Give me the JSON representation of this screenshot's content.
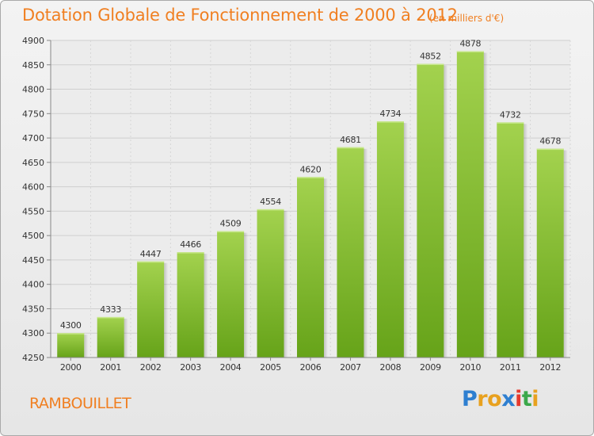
{
  "chart_data": {
    "type": "bar",
    "title": "Dotation Globale de Fonctionnement de 2000 à 2012",
    "unit_note": "(en milliers d'€)",
    "xlabel": "",
    "ylabel": "",
    "categories": [
      "2000",
      "2001",
      "2002",
      "2003",
      "2004",
      "2005",
      "2006",
      "2007",
      "2008",
      "2009",
      "2010",
      "2011",
      "2012"
    ],
    "values": [
      4300,
      4333,
      4447,
      4466,
      4509,
      4554,
      4620,
      4681,
      4734,
      4852,
      4878,
      4732,
      4678
    ],
    "ylim": [
      4250,
      4900
    ],
    "yticks": [
      4250,
      4300,
      4350,
      4400,
      4450,
      4500,
      4550,
      4600,
      4650,
      4700,
      4750,
      4800,
      4850,
      4900
    ],
    "grid": true,
    "bar_color_top": "#a3d24e",
    "bar_color_bottom": "#66a319",
    "text_color": "#f07f21"
  },
  "footer": {
    "city": "RAMBOUILLET",
    "logo_text": "Proxiti"
  }
}
